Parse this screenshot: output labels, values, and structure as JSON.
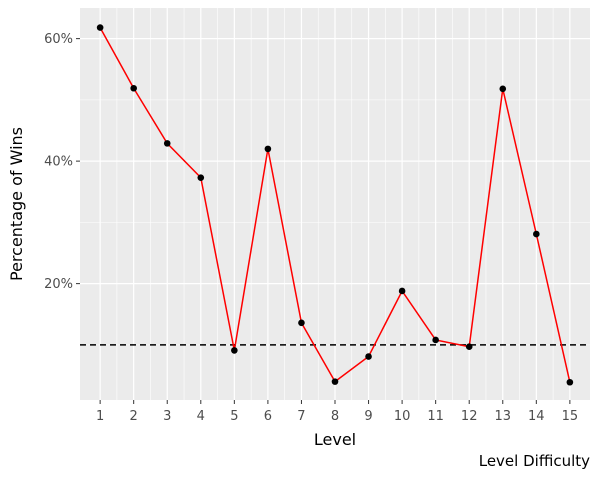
{
  "chart_data": {
    "type": "line",
    "title": "",
    "xlabel": "Level",
    "ylabel": "Percentage of Wins",
    "caption": "Level Difficulty",
    "x": [
      1,
      2,
      3,
      4,
      5,
      6,
      7,
      8,
      9,
      10,
      11,
      12,
      13,
      14,
      15
    ],
    "x_tick_labels": [
      "1",
      "2",
      "3",
      "4",
      "5",
      "6",
      "7",
      "8",
      "9",
      "10",
      "11",
      "12",
      "13",
      "14",
      "15"
    ],
    "y_tick_values": [
      0.2,
      0.4,
      0.6
    ],
    "y_tick_labels": [
      "20%",
      "40%",
      "60%"
    ],
    "xlim": [
      0.4,
      15.6
    ],
    "ylim": [
      0.01,
      0.65
    ],
    "reference_line": {
      "y": 0.1,
      "style": "dashed",
      "color": "#000000"
    },
    "grid": true,
    "series": [
      {
        "values": [
          0.618,
          0.519,
          0.429,
          0.373,
          0.091,
          0.42,
          0.136,
          0.04,
          0.081,
          0.188,
          0.108,
          0.097,
          0.518,
          0.281,
          0.039
        ],
        "line_color": "#ff0000",
        "point_color": "#000000"
      }
    ],
    "panel_background": "#ebebeb",
    "grid_color": "#ffffff"
  }
}
